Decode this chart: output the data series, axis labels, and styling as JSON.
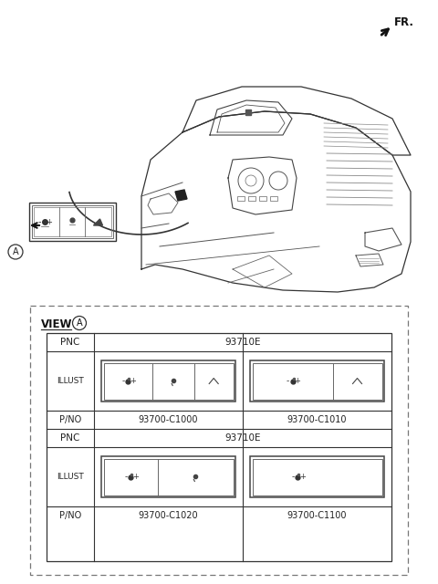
{
  "bg_color": "#ffffff",
  "fr_label": "FR.",
  "view_label": "VIEW",
  "view_circle_label": "A",
  "circle_A_label": "A",
  "rows": [
    {
      "pnc": "93710E",
      "items": [
        {
          "pno": "93700-C1000",
          "type": "3btn"
        },
        {
          "pno": "93700-C1010",
          "type": "2btn_small"
        }
      ]
    },
    {
      "pnc": "93710E",
      "items": [
        {
          "pno": "93700-C1020",
          "type": "2btn_ang"
        },
        {
          "pno": "93700-C1100",
          "type": "1btn"
        }
      ]
    }
  ]
}
